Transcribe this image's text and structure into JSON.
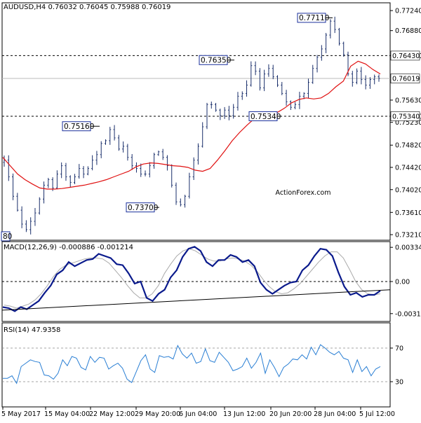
{
  "chart_data": [
    {
      "type": "candlestick",
      "header": "AUDUSD,H4  0.76032 0.76045 0.75988 0.76019",
      "watermark": "ActionForex.com",
      "y_ticks": [
        "0.77240",
        "0.76880",
        "0.76430",
        "0.76019",
        "0.75630",
        "0.75340",
        "0.75230",
        "0.74820",
        "0.74420",
        "0.74020",
        "0.73610",
        "0.73210"
      ],
      "y_tick_values": [
        0.7724,
        0.7688,
        0.7643,
        0.76019,
        0.7563,
        0.7534,
        0.7523,
        0.7482,
        0.7442,
        0.7402,
        0.7361,
        0.7321
      ],
      "ylim": [
        0.7311,
        0.7738
      ],
      "current_price": 0.76019,
      "hlines": [
        0.7643,
        0.7534
      ],
      "annotations": [
        {
          "label": "0.77110",
          "value": 0.7711
        },
        {
          "label": "0.76350",
          "value": 0.7635
        },
        {
          "label": "0.75340",
          "value": 0.7534
        },
        {
          "label": "0.75160",
          "value": 0.7516
        },
        {
          "label": "0.73700",
          "value": 0.737
        },
        {
          "label": "80",
          "value": 0.7318
        }
      ],
      "x_ticks": [
        "5 May 2017",
        "15 May 04:00",
        "22 May 12:00",
        "29 May 20:00",
        "6 Jun 04:00",
        "13 Jun 12:00",
        "20 Jun 20:00",
        "28 Jun 04:00",
        "5 Jul 12:00"
      ],
      "close_series": [
        0.7455,
        0.7425,
        0.739,
        0.7365,
        0.734,
        0.733,
        0.7345,
        0.736,
        0.7385,
        0.741,
        0.742,
        0.7405,
        0.743,
        0.7445,
        0.7425,
        0.7415,
        0.7425,
        0.744,
        0.743,
        0.744,
        0.7455,
        0.7465,
        0.7485,
        0.749,
        0.751,
        0.7495,
        0.7475,
        0.748,
        0.746,
        0.7445,
        0.744,
        0.743,
        0.743,
        0.7445,
        0.7465,
        0.747,
        0.746,
        0.7445,
        0.741,
        0.738,
        0.7375,
        0.739,
        0.7425,
        0.7455,
        0.748,
        0.7515,
        0.7555,
        0.7555,
        0.7545,
        0.7535,
        0.7545,
        0.7535,
        0.755,
        0.757,
        0.7575,
        0.759,
        0.7625,
        0.7615,
        0.7585,
        0.761,
        0.762,
        0.7605,
        0.759,
        0.7575,
        0.756,
        0.755,
        0.7555,
        0.757,
        0.7575,
        0.7595,
        0.762,
        0.764,
        0.7655,
        0.768,
        0.7705,
        0.769,
        0.7665,
        0.7645,
        0.761,
        0.7595,
        0.7615,
        0.76,
        0.759,
        0.76,
        0.7605,
        0.7602
      ],
      "ma_series": [
        0.746,
        0.7445,
        0.743,
        0.742,
        0.7412,
        0.7405,
        0.7403,
        0.7403,
        0.7404,
        0.7406,
        0.7408,
        0.741,
        0.7413,
        0.7416,
        0.742,
        0.7425,
        0.743,
        0.7435,
        0.7443,
        0.7448,
        0.745,
        0.7449,
        0.7447,
        0.7445,
        0.7444,
        0.7442,
        0.7437,
        0.7435,
        0.744,
        0.7455,
        0.7472,
        0.749,
        0.7505,
        0.7518,
        0.753,
        0.7535,
        0.7537,
        0.754,
        0.7548,
        0.7558,
        0.7564,
        0.7567,
        0.7565,
        0.7567,
        0.7575,
        0.7587,
        0.7597,
        0.7624,
        0.7633,
        0.7628,
        0.7618,
        0.761
      ]
    },
    {
      "type": "line",
      "header": "MACD(12,26,9) -0.000886 -0.001214",
      "y_ticks": [
        "0.003341",
        "0.00",
        "-0.003134"
      ],
      "y_tick_values": [
        0.003341,
        0.0,
        -0.003134
      ],
      "ylim": [
        -0.0039,
        0.0039
      ],
      "macd_series": [
        -0.0025,
        -0.0026,
        -0.0029,
        -0.0025,
        -0.0027,
        -0.0023,
        -0.0019,
        -0.0011,
        -0.0004,
        0.0007,
        0.0011,
        0.0019,
        0.0015,
        0.0018,
        0.0021,
        0.0022,
        0.0027,
        0.0025,
        0.0023,
        0.0017,
        0.0016,
        0.0008,
        -0.0002,
        0.0,
        -0.0016,
        -0.0019,
        -0.0012,
        -0.0008,
        0.0004,
        0.0011,
        0.0024,
        0.0032,
        0.0034,
        0.003,
        0.0019,
        0.0015,
        0.0021,
        0.0021,
        0.0026,
        0.0024,
        0.0019,
        0.0021,
        0.0015,
        -0.0001,
        -0.0008,
        -0.0012,
        -0.0008,
        -0.0004,
        -0.0001,
        0.0,
        0.0011,
        0.0016,
        0.0025,
        0.0032,
        0.0031,
        0.0025,
        0.0009,
        -0.0005,
        -0.0013,
        -0.0011,
        -0.0015,
        -0.0013,
        -0.0013,
        -0.0009
      ],
      "signal_series": [
        -0.0023,
        -0.0024,
        -0.0026,
        -0.0024,
        -0.0022,
        -0.0018,
        -0.0012,
        -0.0004,
        0.0005,
        0.0012,
        0.0016,
        0.0018,
        0.002,
        0.0022,
        0.0023,
        0.0023,
        0.0022,
        0.0018,
        0.0011,
        0.0004,
        -0.0004,
        -0.0011,
        -0.0016,
        -0.0016,
        -0.0012,
        -0.0004,
        0.0008,
        0.0017,
        0.0025,
        0.003,
        0.0032,
        0.003,
        0.0026,
        0.0022,
        0.002,
        0.002,
        0.0022,
        0.0023,
        0.0022,
        0.002,
        0.0016,
        0.001,
        0.0002,
        -0.0005,
        -0.001,
        -0.0012,
        -0.0011,
        -0.0007,
        -0.0002,
        0.0005,
        0.0012,
        0.0019,
        0.0025,
        0.0029,
        0.0029,
        0.0023,
        0.0012,
        0.0,
        -0.0008,
        -0.0012,
        -0.0013,
        -0.0012
      ],
      "trendline": [
        [
          0.0,
          -0.0028
        ],
        [
          1.0,
          -0.0008
        ]
      ]
    },
    {
      "type": "line",
      "header": "RSI(14) 47.9358",
      "y_ticks": [
        "70",
        "30"
      ],
      "y_tick_values": [
        70,
        30
      ],
      "ylim": [
        0,
        100
      ],
      "rsi_series": [
        34,
        34,
        37,
        28,
        48,
        52,
        56,
        54,
        53,
        38,
        37,
        33,
        40,
        56,
        49,
        60,
        58,
        47,
        44,
        60,
        53,
        59,
        58,
        45,
        49,
        52,
        46,
        33,
        29,
        42,
        55,
        62,
        45,
        41,
        61,
        59,
        60,
        57,
        73,
        63,
        58,
        64,
        52,
        54,
        69,
        55,
        53,
        65,
        59,
        53,
        43,
        45,
        48,
        58,
        46,
        53,
        64,
        40,
        56,
        47,
        36,
        47,
        51,
        57,
        56,
        62,
        57,
        71,
        62,
        74,
        70,
        65,
        62,
        66,
        58,
        56,
        41,
        56,
        42,
        48,
        37,
        45,
        48
      ]
    }
  ]
}
